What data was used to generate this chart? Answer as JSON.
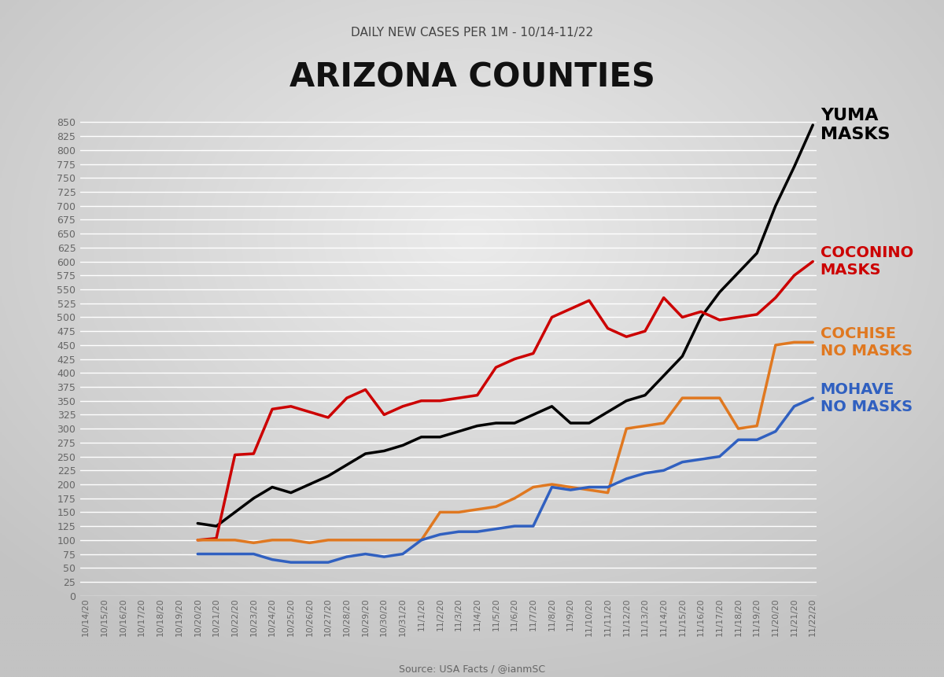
{
  "title": "ARIZONA COUNTIES",
  "subtitle": "DAILY NEW CASES PER 1M - 10/14-11/22",
  "source": "Source: USA Facts / @ianmSC",
  "bg_outer": "#c8c8c8",
  "bg_inner": "#e8e8e8",
  "ylim": [
    0,
    875
  ],
  "yticks": [
    0,
    25,
    50,
    75,
    100,
    125,
    150,
    175,
    200,
    225,
    250,
    275,
    300,
    325,
    350,
    375,
    400,
    425,
    450,
    475,
    500,
    525,
    550,
    575,
    600,
    625,
    650,
    675,
    700,
    725,
    750,
    775,
    800,
    825,
    850
  ],
  "dates": [
    "10/14/20",
    "10/15/20",
    "10/16/20",
    "10/17/20",
    "10/18/20",
    "10/19/20",
    "10/20/20",
    "10/21/20",
    "10/22/20",
    "10/23/20",
    "10/24/20",
    "10/25/20",
    "10/26/20",
    "10/27/20",
    "10/28/20",
    "10/29/20",
    "10/30/20",
    "10/31/20",
    "11/1/20",
    "11/2/20",
    "11/3/20",
    "11/4/20",
    "11/5/20",
    "11/6/20",
    "11/7/20",
    "11/8/20",
    "11/9/20",
    "11/10/20",
    "11/11/20",
    "11/12/20",
    "11/13/20",
    "11/14/20",
    "11/15/20",
    "11/16/20",
    "11/17/20",
    "11/18/20",
    "11/19/20",
    "11/20/20",
    "11/21/20",
    "11/22/20"
  ],
  "series": {
    "YUMA": {
      "color": "#000000",
      "label": "YUMA\nMASKS",
      "label_color": "#000000",
      "label_fontsize": 16,
      "label_ypos": 845,
      "values": [
        null,
        null,
        null,
        null,
        null,
        null,
        130,
        125,
        150,
        175,
        195,
        185,
        200,
        215,
        235,
        255,
        260,
        270,
        285,
        285,
        295,
        305,
        310,
        310,
        325,
        340,
        310,
        310,
        330,
        350,
        360,
        395,
        430,
        500,
        545,
        580,
        615,
        700,
        770,
        845
      ]
    },
    "COCONINO": {
      "color": "#cc0000",
      "label": "COCONINO\nMASKS",
      "label_color": "#cc0000",
      "label_fontsize": 14,
      "label_ypos": 600,
      "values": [
        null,
        null,
        null,
        null,
        null,
        null,
        100,
        103,
        253,
        255,
        335,
        340,
        330,
        320,
        355,
        370,
        325,
        340,
        350,
        350,
        355,
        360,
        410,
        425,
        435,
        500,
        515,
        530,
        480,
        465,
        475,
        535,
        500,
        510,
        495,
        500,
        505,
        535,
        575,
        600
      ]
    },
    "COCHISE": {
      "color": "#e07820",
      "label": "COCHISE\nNO MASKS",
      "label_color": "#e07820",
      "label_fontsize": 14,
      "label_ypos": 455,
      "values": [
        null,
        null,
        null,
        null,
        null,
        null,
        100,
        100,
        100,
        95,
        100,
        100,
        95,
        100,
        100,
        100,
        100,
        100,
        100,
        150,
        150,
        155,
        160,
        175,
        195,
        200,
        195,
        190,
        185,
        300,
        305,
        310,
        355,
        355,
        355,
        300,
        305,
        450,
        455,
        455
      ]
    },
    "MOHAVE": {
      "color": "#3060c0",
      "label": "MOHAVE\nNO MASKS",
      "label_color": "#3060c0",
      "label_fontsize": 14,
      "label_ypos": 355,
      "values": [
        null,
        null,
        null,
        null,
        null,
        null,
        75,
        75,
        75,
        75,
        65,
        60,
        60,
        60,
        70,
        75,
        70,
        75,
        100,
        110,
        115,
        115,
        120,
        125,
        125,
        195,
        190,
        195,
        195,
        210,
        220,
        225,
        240,
        245,
        250,
        280,
        280,
        295,
        340,
        355
      ]
    }
  }
}
